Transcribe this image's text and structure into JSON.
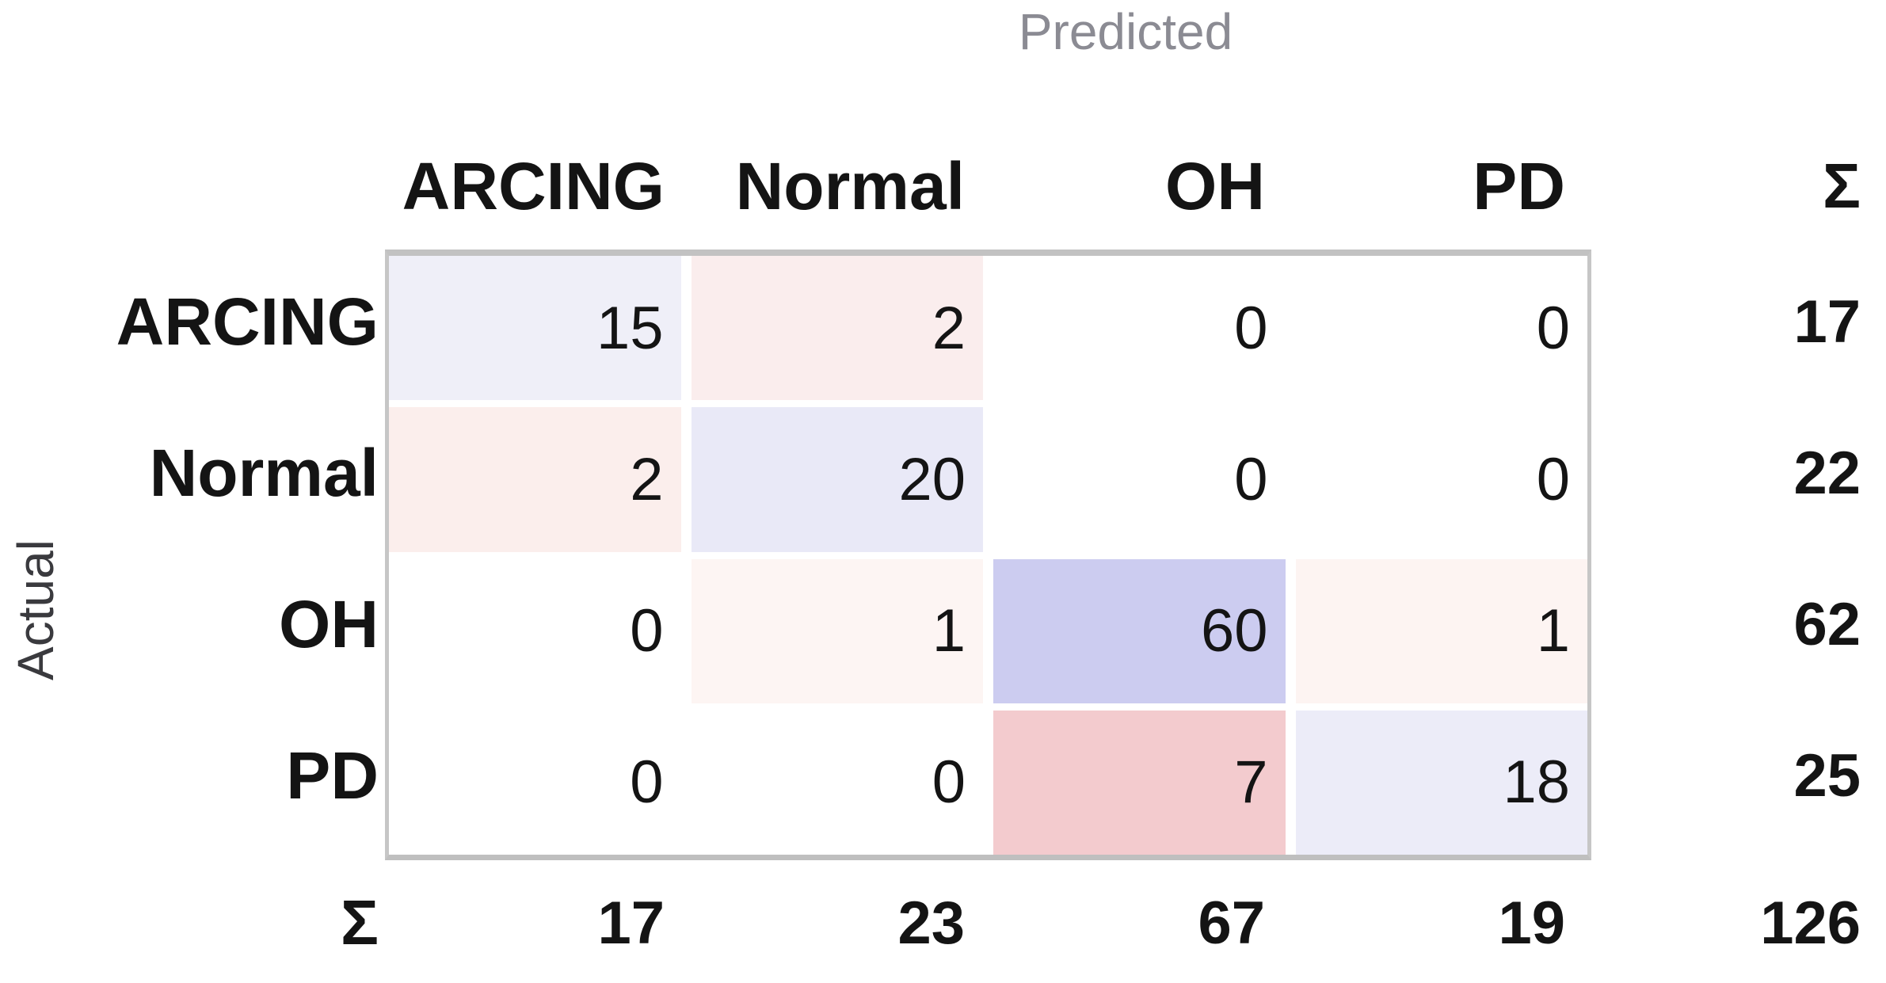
{
  "axes": {
    "x_title": "Predicted",
    "y_title": "Actual"
  },
  "sum_symbol": "Σ",
  "chart_data": {
    "type": "heatmap",
    "subtype": "confusion-matrix",
    "x_axis_label": "Predicted",
    "y_axis_label": "Actual",
    "classes": [
      "ARCING",
      "Normal",
      "OH",
      "PD"
    ],
    "matrix": [
      [
        15,
        2,
        0,
        0
      ],
      [
        2,
        20,
        0,
        0
      ],
      [
        0,
        1,
        60,
        1
      ],
      [
        0,
        0,
        7,
        18
      ]
    ],
    "row_totals": [
      17,
      22,
      62,
      25
    ],
    "col_totals": [
      17,
      23,
      67,
      19
    ],
    "grand_total": 126,
    "legend_position": "none",
    "grid": "white-gaps-between-cells",
    "cell_colors": [
      [
        "#efeff8",
        "#faeded",
        "#ffffff",
        "#ffffff"
      ],
      [
        "#fbeeec",
        "#e9e9f7",
        "#ffffff",
        "#ffffff"
      ],
      [
        "#ffffff",
        "#fdf5f3",
        "#ccccf0",
        "#fdf4f2"
      ],
      [
        "#ffffff",
        "#ffffff",
        "#f3cbce",
        "#ececf8"
      ]
    ],
    "correct_accent_color": "#ccccf0",
    "error_accent_color": "#f3cbce"
  },
  "colors": {
    "predicted_label_text": "#8b8b93",
    "actual_label_text": "#3a3a3e",
    "table_border": "#c6c6c6",
    "value_text": "#141414"
  }
}
